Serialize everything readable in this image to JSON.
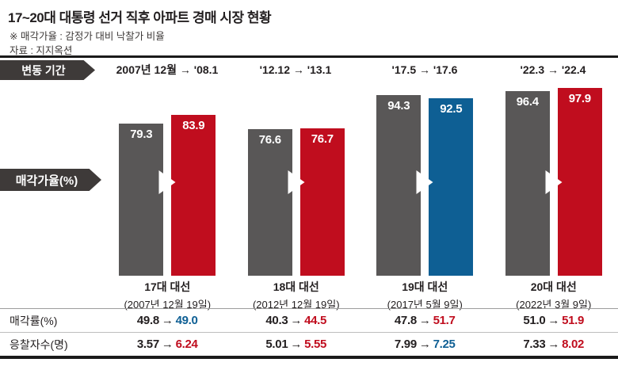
{
  "header": {
    "title": "17~20대 대통령 선거 직후 아파트 경매 시장 현황",
    "note": "※ 매각가율 : 감정가 대비 낙찰가 비율",
    "source": "자료 : 지지옥션"
  },
  "glyphs": {
    "arrow": "→"
  },
  "colors": {
    "bar_gray": "#595757",
    "up_red": "#c00d1e",
    "down_blue": "#0e5f94",
    "tab_dark": "#3e3a39"
  },
  "period_row": {
    "label": "변동 기간",
    "periods": [
      "2007년 12월 → '08.1",
      "'12.12 → '13.1",
      "'17.5 → '17.6",
      "'22.3 → '22.4"
    ]
  },
  "chart": {
    "ylabel": "매각가율(%)",
    "groups": [
      {
        "before": "79.3",
        "after": "83.9",
        "after_hex": "#c00d1e",
        "name": "17대 대선",
        "date": "(2007년 12월 19일)"
      },
      {
        "before": "76.6",
        "after": "76.7",
        "after_hex": "#c00d1e",
        "name": "18대 대선",
        "date": "(2012년 12월 19일)"
      },
      {
        "before": "94.3",
        "after": "92.5",
        "after_hex": "#0e5f94",
        "name": "19대 대선",
        "date": "(2017년 5월 9일)"
      },
      {
        "before": "96.4",
        "after": "97.9",
        "after_hex": "#c00d1e",
        "name": "20대 대선",
        "date": "(2022년 3월 9일)"
      }
    ]
  },
  "table": {
    "rows": [
      {
        "label": "매각률(%)",
        "cells": [
          {
            "before": "49.8",
            "after": "49.0",
            "hex": "#0e5f94"
          },
          {
            "before": "40.3",
            "after": "44.5",
            "hex": "#c00d1e"
          },
          {
            "before": "47.8",
            "after": "51.7",
            "hex": "#c00d1e"
          },
          {
            "before": "51.0",
            "after": "51.9",
            "hex": "#c00d1e"
          }
        ]
      },
      {
        "label": "응찰자수(명)",
        "cells": [
          {
            "before": "3.57",
            "after": "6.24",
            "hex": "#c00d1e"
          },
          {
            "before": "5.01",
            "after": "5.55",
            "hex": "#c00d1e"
          },
          {
            "before": "7.99",
            "after": "7.25",
            "hex": "#0e5f94"
          },
          {
            "before": "7.33",
            "after": "8.02",
            "hex": "#c00d1e"
          }
        ]
      }
    ]
  },
  "chart_data": {
    "type": "bar",
    "title": "17~20대 대통령 선거 직후 아파트 경매 시장 현황",
    "ylabel": "매각가율(%)",
    "ylim": [
      0,
      100
    ],
    "categories": [
      "17대 대선 (2007년 12월 19일)",
      "18대 대선 (2012년 12월 19일)",
      "19대 대선 (2017년 5월 9일)",
      "20대 대선 (2022년 3월 9일)"
    ],
    "change_periods": [
      "2007년 12월 → '08.1",
      "'12.12 → '13.1",
      "'17.5 → '17.6",
      "'22.3 → '22.4"
    ],
    "series": [
      {
        "name": "before",
        "values": [
          79.3,
          76.6,
          94.3,
          96.4
        ]
      },
      {
        "name": "after",
        "values": [
          83.9,
          76.7,
          92.5,
          97.9
        ]
      }
    ],
    "extra_rows": [
      {
        "label": "매각률(%)",
        "before": [
          49.8,
          40.3,
          47.8,
          51.0
        ],
        "after": [
          49.0,
          44.5,
          51.7,
          51.9
        ]
      },
      {
        "label": "응찰자수(명)",
        "before": [
          3.57,
          5.01,
          7.99,
          7.33
        ],
        "after": [
          6.24,
          5.55,
          7.25,
          8.02
        ]
      }
    ],
    "legend_position": "none",
    "grid": false,
    "source": "지지옥션"
  }
}
